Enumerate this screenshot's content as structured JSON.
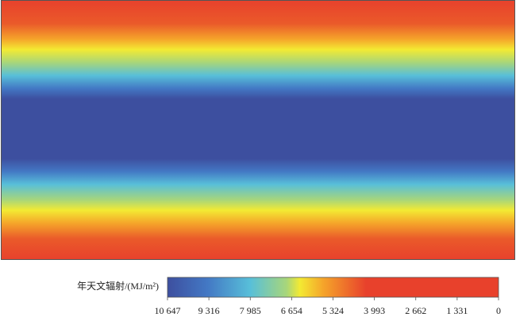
{
  "chart_data": {
    "type": "colorbar",
    "colorbar_label": "年天文辐射/(MJ/m²)",
    "clim": [
      10647,
      0
    ],
    "ticks": [
      {
        "value": 10647,
        "label": "10 647"
      },
      {
        "value": 9316,
        "label": "9 316"
      },
      {
        "value": 7985,
        "label": "7 985"
      },
      {
        "value": 6654,
        "label": "6 654"
      },
      {
        "value": 5324,
        "label": "5 324"
      },
      {
        "value": 3993,
        "label": "3 993"
      },
      {
        "value": 2662,
        "label": "2 662"
      },
      {
        "value": 1331,
        "label": "1 331"
      },
      0
    ]
  }
}
